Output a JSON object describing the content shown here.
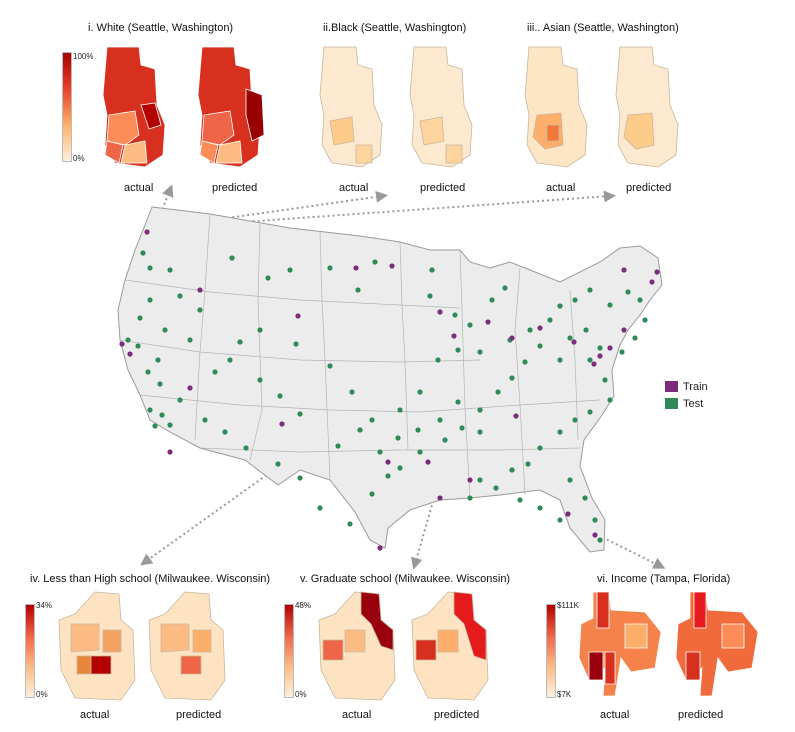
{
  "panels": {
    "white": {
      "title": "i. White (Seattle, Washington)",
      "cbar_top": "100%",
      "cbar_bottom": "0%"
    },
    "black": {
      "title": "ii.Black (Seattle, Washington)"
    },
    "asian": {
      "title": "iii.. Asian (Seattle, Washington)"
    },
    "hs": {
      "title": "iv. Less than High school  (Milwaukee. Wisconsin)",
      "cbar_top": "34%",
      "cbar_bottom": "0%"
    },
    "grad": {
      "title": "v. Graduate school  (Milwaukee. Wisconsin)",
      "cbar_top": "48%",
      "cbar_bottom": "0%"
    },
    "income": {
      "title": "vi. Income (Tampa, Florida)",
      "cbar_top": "$111K",
      "cbar_bottom": "$7K"
    }
  },
  "captions": {
    "actual": "actual",
    "predicted": "predicted"
  },
  "legend": {
    "train": {
      "label": "Train",
      "color": "#7b2d7b"
    },
    "test": {
      "label": "Test",
      "color": "#2e8b57"
    }
  },
  "colors": {
    "scale_low": "#fdf0dc",
    "scale_high": "#b30000",
    "map_fill": "#ececec",
    "map_stroke": "#9a9a9a"
  }
}
